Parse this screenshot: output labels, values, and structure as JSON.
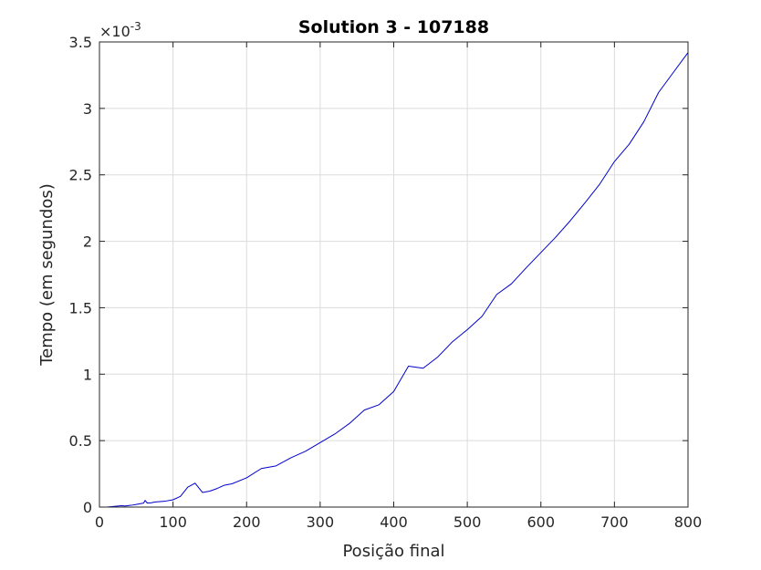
{
  "chart_data": {
    "type": "line",
    "title": "Solution 3 - 107188",
    "xlabel": "Posição final",
    "ylabel": "Tempo (em segundos)",
    "y_multiplier": "×10",
    "y_exponent": "-3",
    "xlim": [
      0,
      800
    ],
    "ylim": [
      0,
      3.5
    ],
    "xticks": [
      "0",
      "100",
      "200",
      "300",
      "400",
      "500",
      "600",
      "700",
      "800"
    ],
    "yticks": [
      "0",
      "0.5",
      "1",
      "1.5",
      "2",
      "2.5",
      "3",
      "3.5"
    ],
    "grid": true,
    "colors": {
      "series": "#0000cd",
      "axis": "#262626",
      "grid": "#dcdcdc"
    },
    "series": [
      {
        "x": [
          0,
          10,
          20,
          25,
          30,
          35,
          40,
          45,
          50,
          55,
          60,
          62,
          65,
          70,
          75,
          80,
          90,
          100,
          110,
          120,
          130,
          140,
          150,
          160,
          170,
          180,
          200,
          220,
          240,
          260,
          280,
          300,
          320,
          340,
          360,
          380,
          400,
          420,
          440,
          460,
          480,
          500,
          520,
          540,
          560,
          580,
          600,
          620,
          640,
          660,
          680,
          700,
          720,
          740,
          760,
          780,
          800
        ],
        "y": [
          0,
          0,
          0.005,
          0.008,
          0.01,
          0.008,
          0.012,
          0.015,
          0.02,
          0.025,
          0.03,
          0.05,
          0.03,
          0.032,
          0.038,
          0.04,
          0.045,
          0.055,
          0.08,
          0.15,
          0.18,
          0.11,
          0.12,
          0.14,
          0.165,
          0.175,
          0.22,
          0.29,
          0.31,
          0.37,
          0.42,
          0.485,
          0.55,
          0.63,
          0.73,
          0.77,
          0.87,
          1.06,
          1.045,
          1.13,
          1.245,
          1.335,
          1.435,
          1.6,
          1.68,
          1.8,
          1.915,
          2.03,
          2.155,
          2.29,
          2.43,
          2.6,
          2.73,
          2.9,
          3.12,
          3.27,
          3.42
        ]
      }
    ]
  }
}
